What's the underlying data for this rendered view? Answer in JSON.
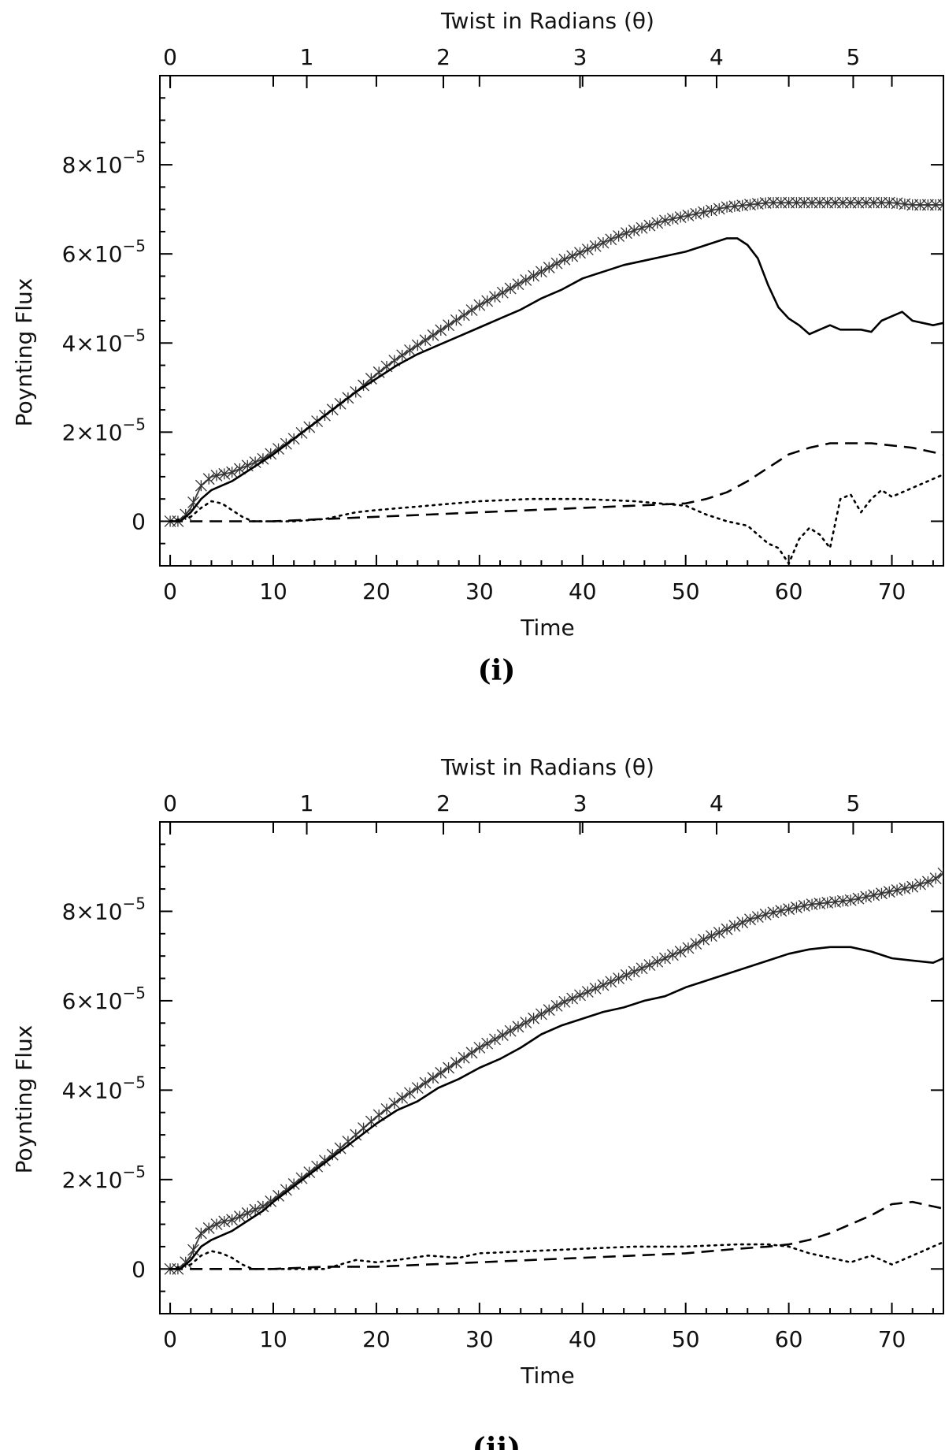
{
  "chart_data": [
    {
      "type": "line",
      "panel_label": "(i)",
      "xlabel": "Time",
      "ylabel": "Poynting Flux",
      "top_xlabel": "Twist in Radians (θ)",
      "xlim": [
        -1,
        75
      ],
      "ylim": [
        -1.0,
        10.0
      ],
      "x_ticks": [
        "0",
        "10",
        "20",
        "30",
        "40",
        "50",
        "60",
        "70"
      ],
      "x_tick_values": [
        0,
        10,
        20,
        30,
        40,
        50,
        60,
        70
      ],
      "top_ticks": [
        "0",
        "1",
        "2",
        "3",
        "4",
        "5"
      ],
      "top_tick_values": [
        0,
        1,
        2,
        3,
        4,
        5
      ],
      "top_scale": 13.25,
      "y_ticks": [
        {
          "value": 0,
          "label": "0"
        },
        {
          "value": 2,
          "label": "2×10",
          "exp": "−5"
        },
        {
          "value": 4,
          "label": "4×10",
          "exp": "−5"
        },
        {
          "value": 6,
          "label": "6×10",
          "exp": "−5"
        },
        {
          "value": 8,
          "label": "8×10",
          "exp": "−5"
        }
      ],
      "y_unit": "1e-5",
      "series": [
        {
          "name": "total (crosses)",
          "style": "crosses",
          "x": [
            0,
            1,
            2,
            3,
            4,
            5,
            6,
            7,
            8,
            9,
            10,
            12,
            14,
            16,
            18,
            20,
            22,
            24,
            26,
            28,
            30,
            32,
            34,
            36,
            38,
            40,
            42,
            44,
            46,
            48,
            50,
            52,
            54,
            56,
            58,
            60,
            62,
            64,
            66,
            68,
            70,
            72,
            74,
            75
          ],
          "y": [
            0.0,
            0.0,
            0.3,
            0.8,
            1.0,
            1.05,
            1.1,
            1.2,
            1.3,
            1.4,
            1.55,
            1.85,
            2.2,
            2.55,
            2.9,
            3.3,
            3.65,
            3.95,
            4.25,
            4.55,
            4.85,
            5.1,
            5.35,
            5.6,
            5.85,
            6.05,
            6.25,
            6.45,
            6.6,
            6.75,
            6.85,
            6.95,
            7.05,
            7.1,
            7.15,
            7.15,
            7.15,
            7.15,
            7.15,
            7.15,
            7.15,
            7.1,
            7.1,
            7.1
          ]
        },
        {
          "name": "solid",
          "style": "solid",
          "x": [
            0,
            1,
            2,
            3,
            4,
            5,
            6,
            7,
            8,
            9,
            10,
            12,
            14,
            16,
            18,
            20,
            22,
            24,
            26,
            28,
            30,
            32,
            34,
            36,
            38,
            40,
            42,
            44,
            46,
            48,
            50,
            52,
            54,
            55,
            56,
            57,
            58,
            59,
            60,
            61,
            62,
            63,
            64,
            65,
            66,
            67,
            68,
            69,
            70,
            71,
            72,
            73,
            74,
            75
          ],
          "y": [
            0.0,
            0.0,
            0.2,
            0.5,
            0.7,
            0.8,
            0.9,
            1.05,
            1.2,
            1.35,
            1.5,
            1.85,
            2.2,
            2.55,
            2.9,
            3.2,
            3.5,
            3.75,
            3.95,
            4.15,
            4.35,
            4.55,
            4.75,
            5.0,
            5.2,
            5.45,
            5.6,
            5.75,
            5.85,
            5.95,
            6.05,
            6.2,
            6.35,
            6.35,
            6.2,
            5.9,
            5.3,
            4.8,
            4.55,
            4.4,
            4.2,
            4.3,
            4.4,
            4.3,
            4.3,
            4.3,
            4.25,
            4.5,
            4.6,
            4.7,
            4.5,
            4.45,
            4.4,
            4.45
          ]
        },
        {
          "name": "dashed",
          "style": "dashed",
          "x": [
            0,
            5,
            10,
            15,
            20,
            25,
            30,
            35,
            40,
            45,
            50,
            52,
            54,
            56,
            58,
            60,
            62,
            64,
            66,
            68,
            70,
            72,
            74,
            75
          ],
          "y": [
            0.0,
            0.0,
            0.0,
            0.05,
            0.1,
            0.15,
            0.2,
            0.25,
            0.3,
            0.35,
            0.4,
            0.5,
            0.65,
            0.9,
            1.2,
            1.5,
            1.65,
            1.75,
            1.75,
            1.75,
            1.7,
            1.65,
            1.55,
            1.5
          ]
        },
        {
          "name": "dotted",
          "style": "dotted",
          "x": [
            0,
            2,
            3,
            4,
            5,
            6,
            7,
            8,
            10,
            12,
            15,
            18,
            20,
            25,
            30,
            35,
            40,
            45,
            50,
            52,
            54,
            56,
            57,
            58,
            59,
            60,
            61,
            62,
            63,
            64,
            65,
            66,
            67,
            68,
            69,
            70,
            71,
            72,
            73,
            74,
            75
          ],
          "y": [
            0.0,
            0.1,
            0.3,
            0.45,
            0.4,
            0.25,
            0.1,
            0.0,
            0.0,
            0.0,
            0.05,
            0.2,
            0.25,
            0.35,
            0.45,
            0.5,
            0.5,
            0.45,
            0.35,
            0.15,
            0.0,
            -0.1,
            -0.3,
            -0.5,
            -0.6,
            -0.95,
            -0.4,
            -0.15,
            -0.3,
            -0.6,
            0.5,
            0.6,
            0.2,
            0.5,
            0.7,
            0.55,
            0.65,
            0.75,
            0.85,
            0.95,
            1.05
          ]
        }
      ]
    },
    {
      "type": "line",
      "panel_label": "(ii)",
      "xlabel": "Time",
      "ylabel": "Poynting Flux",
      "top_xlabel": "Twist in Radians (θ)",
      "xlim": [
        -1,
        75
      ],
      "ylim": [
        -1.0,
        10.0
      ],
      "x_ticks": [
        "0",
        "10",
        "20",
        "30",
        "40",
        "50",
        "60",
        "70"
      ],
      "x_tick_values": [
        0,
        10,
        20,
        30,
        40,
        50,
        60,
        70
      ],
      "top_ticks": [
        "0",
        "1",
        "2",
        "3",
        "4",
        "5"
      ],
      "top_tick_values": [
        0,
        1,
        2,
        3,
        4,
        5
      ],
      "top_scale": 13.25,
      "y_ticks": [
        {
          "value": 0,
          "label": "0"
        },
        {
          "value": 2,
          "label": "2×10",
          "exp": "−5"
        },
        {
          "value": 4,
          "label": "4×10",
          "exp": "−5"
        },
        {
          "value": 6,
          "label": "6×10",
          "exp": "−5"
        },
        {
          "value": 8,
          "label": "8×10",
          "exp": "−5"
        }
      ],
      "y_unit": "1e-5",
      "series": [
        {
          "name": "total (crosses)",
          "style": "crosses",
          "x": [
            0,
            1,
            2,
            3,
            4,
            5,
            6,
            7,
            8,
            9,
            10,
            12,
            14,
            16,
            18,
            20,
            22,
            24,
            26,
            28,
            30,
            32,
            34,
            36,
            38,
            40,
            42,
            44,
            46,
            48,
            50,
            52,
            54,
            56,
            58,
            60,
            62,
            64,
            66,
            68,
            70,
            72,
            74,
            75
          ],
          "y": [
            0.0,
            0.0,
            0.3,
            0.8,
            0.95,
            1.05,
            1.1,
            1.2,
            1.3,
            1.4,
            1.55,
            1.9,
            2.25,
            2.6,
            3.0,
            3.4,
            3.75,
            4.05,
            4.35,
            4.65,
            4.95,
            5.2,
            5.45,
            5.7,
            5.95,
            6.15,
            6.35,
            6.55,
            6.75,
            6.95,
            7.15,
            7.4,
            7.6,
            7.8,
            7.95,
            8.05,
            8.15,
            8.2,
            8.25,
            8.35,
            8.45,
            8.55,
            8.7,
            8.85
          ]
        },
        {
          "name": "solid",
          "style": "solid",
          "x": [
            0,
            1,
            2,
            3,
            4,
            5,
            6,
            7,
            8,
            9,
            10,
            12,
            14,
            16,
            18,
            20,
            22,
            24,
            26,
            28,
            30,
            32,
            34,
            36,
            38,
            40,
            42,
            44,
            46,
            48,
            50,
            52,
            54,
            56,
            58,
            60,
            62,
            64,
            66,
            68,
            70,
            72,
            74,
            75
          ],
          "y": [
            0.0,
            0.0,
            0.2,
            0.5,
            0.65,
            0.75,
            0.85,
            1.0,
            1.15,
            1.3,
            1.5,
            1.85,
            2.2,
            2.55,
            2.9,
            3.25,
            3.55,
            3.75,
            4.05,
            4.25,
            4.5,
            4.7,
            4.95,
            5.25,
            5.45,
            5.6,
            5.75,
            5.85,
            6.0,
            6.1,
            6.3,
            6.45,
            6.6,
            6.75,
            6.9,
            7.05,
            7.15,
            7.2,
            7.2,
            7.1,
            6.95,
            6.9,
            6.85,
            6.95
          ]
        },
        {
          "name": "dashed",
          "style": "dashed",
          "x": [
            0,
            5,
            10,
            15,
            20,
            25,
            30,
            35,
            40,
            45,
            50,
            55,
            58,
            60,
            62,
            64,
            66,
            68,
            70,
            72,
            74,
            75
          ],
          "y": [
            0.0,
            0.0,
            0.0,
            0.05,
            0.05,
            0.1,
            0.15,
            0.2,
            0.25,
            0.3,
            0.35,
            0.45,
            0.5,
            0.55,
            0.65,
            0.8,
            1.0,
            1.2,
            1.45,
            1.5,
            1.4,
            1.35
          ]
        },
        {
          "name": "dotted",
          "style": "dotted",
          "x": [
            0,
            2,
            3,
            4,
            5,
            6,
            7,
            8,
            10,
            12,
            15,
            18,
            20,
            22,
            25,
            28,
            30,
            35,
            40,
            45,
            50,
            55,
            58,
            60,
            62,
            64,
            66,
            68,
            70,
            72,
            74,
            75
          ],
          "y": [
            0.0,
            0.1,
            0.3,
            0.4,
            0.35,
            0.25,
            0.1,
            0.0,
            0.0,
            0.0,
            0.0,
            0.2,
            0.15,
            0.2,
            0.3,
            0.25,
            0.35,
            0.4,
            0.45,
            0.5,
            0.5,
            0.55,
            0.55,
            0.5,
            0.35,
            0.25,
            0.15,
            0.3,
            0.1,
            0.3,
            0.5,
            0.6
          ]
        }
      ]
    }
  ]
}
